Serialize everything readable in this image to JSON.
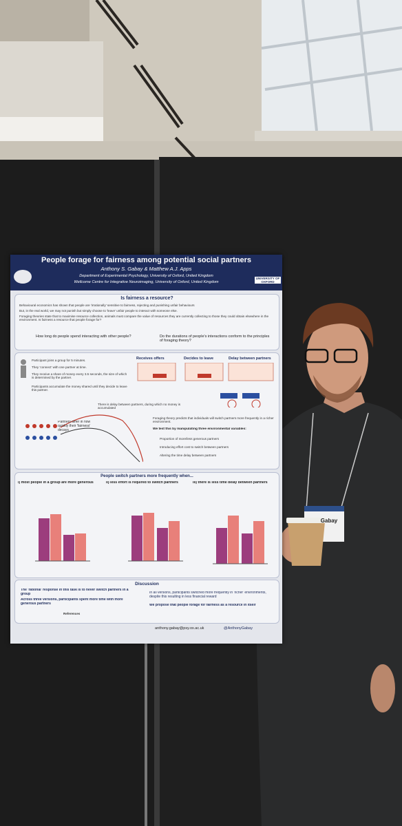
{
  "poster": {
    "title": "People forage for fairness among potential social partners",
    "authors": "Anthony S. Gabay & Matthew A.J. Apps",
    "affiliations": [
      "Department of Experimental Psychology, University of Oxford, United Kingdom",
      "Wellcome Centre for Integrative Neuroimaging, University of Oxford, United Kingdom"
    ],
    "university": "UNIVERSITY OF OXFORD",
    "intro": {
      "heading": "Is fairness a resource?",
      "bullets": [
        "Behavioural economics has shown that people are 'irrationally' sensitive to fairness, rejecting and punishing unfair behaviours",
        "But, in the real world, we may not punish but simply choose to 'leave' unfair people to interact with someone else.",
        "Foraging theories state that to maximise resource collection, animals must compare the value of resources they are currently collecting to those they could obtain elsewhere in the environment. Is fairness a resource that people forage for?"
      ],
      "questions": [
        "How long do people spend interacting with other people?",
        "Do the durations of people's interactions conform to the principles of foraging theory?"
      ]
    },
    "task": {
      "steps": [
        "Participant joins a group for 5 minutes.",
        "They 'connect' with one partner at time.",
        "They receive a share of money every 3.5 seconds, the size of which is determined by the partner.",
        "Participants accumulate the money shared until they decide to leave this partner."
      ],
      "delay": "There is delay between partners, during which no money is accumulated",
      "stages": [
        "Receives offers",
        "Decides to leave",
        "Delay between partners"
      ],
      "note": "Partners differ in how quickly their 'fairness' decays",
      "theory": "Foraging theory predicts that individuals will switch partners more frequently in a richer environment.",
      "manipulation": "We test this by manipulating three environmental variables:",
      "variables": [
        "Proportion of more/less generous partners",
        "Introducing effort cost to switch between partners",
        "Altering the time delay between partners"
      ]
    },
    "results": {
      "heading": "People switch partners more frequently when...",
      "panels": [
        "i) most people in a group are more generous",
        "ii) less effort is required to switch partners",
        "iii) there is less time delay between partners"
      ]
    },
    "discussion": {
      "heading": "Discussion",
      "left": [
        "The 'rational' response in this task is to never switch partners in a group",
        "Across three versions, participants spent more time with more generous partners"
      ],
      "right": [
        "In all versions, participants switched more frequently in 'richer' environments, despite this resulting in less financial reward",
        "We propose that people forage for fairness as a resource in itself"
      ],
      "references": "References"
    },
    "contact": {
      "email": "anthony.gabay@psy.ox.ac.uk",
      "twitter": "@AnthonyGabay"
    }
  },
  "badge": {
    "name": "Gabay"
  }
}
